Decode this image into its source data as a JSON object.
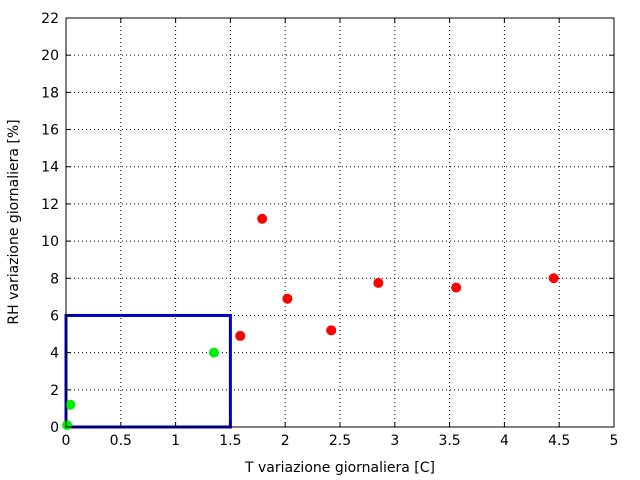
{
  "chart_data": {
    "type": "scatter",
    "xlabel": "T variazione giornaliera [C]",
    "ylabel": "RH variazione giornaliera [%]",
    "xlim": [
      0,
      5
    ],
    "ylim": [
      0,
      22
    ],
    "xticks": [
      "0",
      "0.5",
      "1",
      "1.5",
      "2",
      "2.5",
      "3",
      "3.5",
      "4",
      "4.5",
      "5"
    ],
    "yticks": [
      "0",
      "2",
      "4",
      "6",
      "8",
      "10",
      "12",
      "14",
      "16",
      "18",
      "20",
      "22"
    ],
    "grid": true,
    "series": [
      {
        "color": "#ff0000",
        "points": [
          {
            "x": 1.59,
            "y": 4.9
          },
          {
            "x": 1.79,
            "y": 11.2
          },
          {
            "x": 2.02,
            "y": 6.9
          },
          {
            "x": 2.42,
            "y": 5.2
          },
          {
            "x": 2.85,
            "y": 7.75
          },
          {
            "x": 3.56,
            "y": 7.5
          },
          {
            "x": 4.45,
            "y": 8.0
          }
        ]
      },
      {
        "color": "#00ee00",
        "points": [
          {
            "x": 0.01,
            "y": 0.1
          },
          {
            "x": 0.04,
            "y": 1.2
          },
          {
            "x": 1.35,
            "y": 4.0
          }
        ]
      }
    ],
    "threshold_box": {
      "x": [
        0,
        1.5
      ],
      "y": [
        0,
        6
      ],
      "color": "#0000cc"
    }
  }
}
